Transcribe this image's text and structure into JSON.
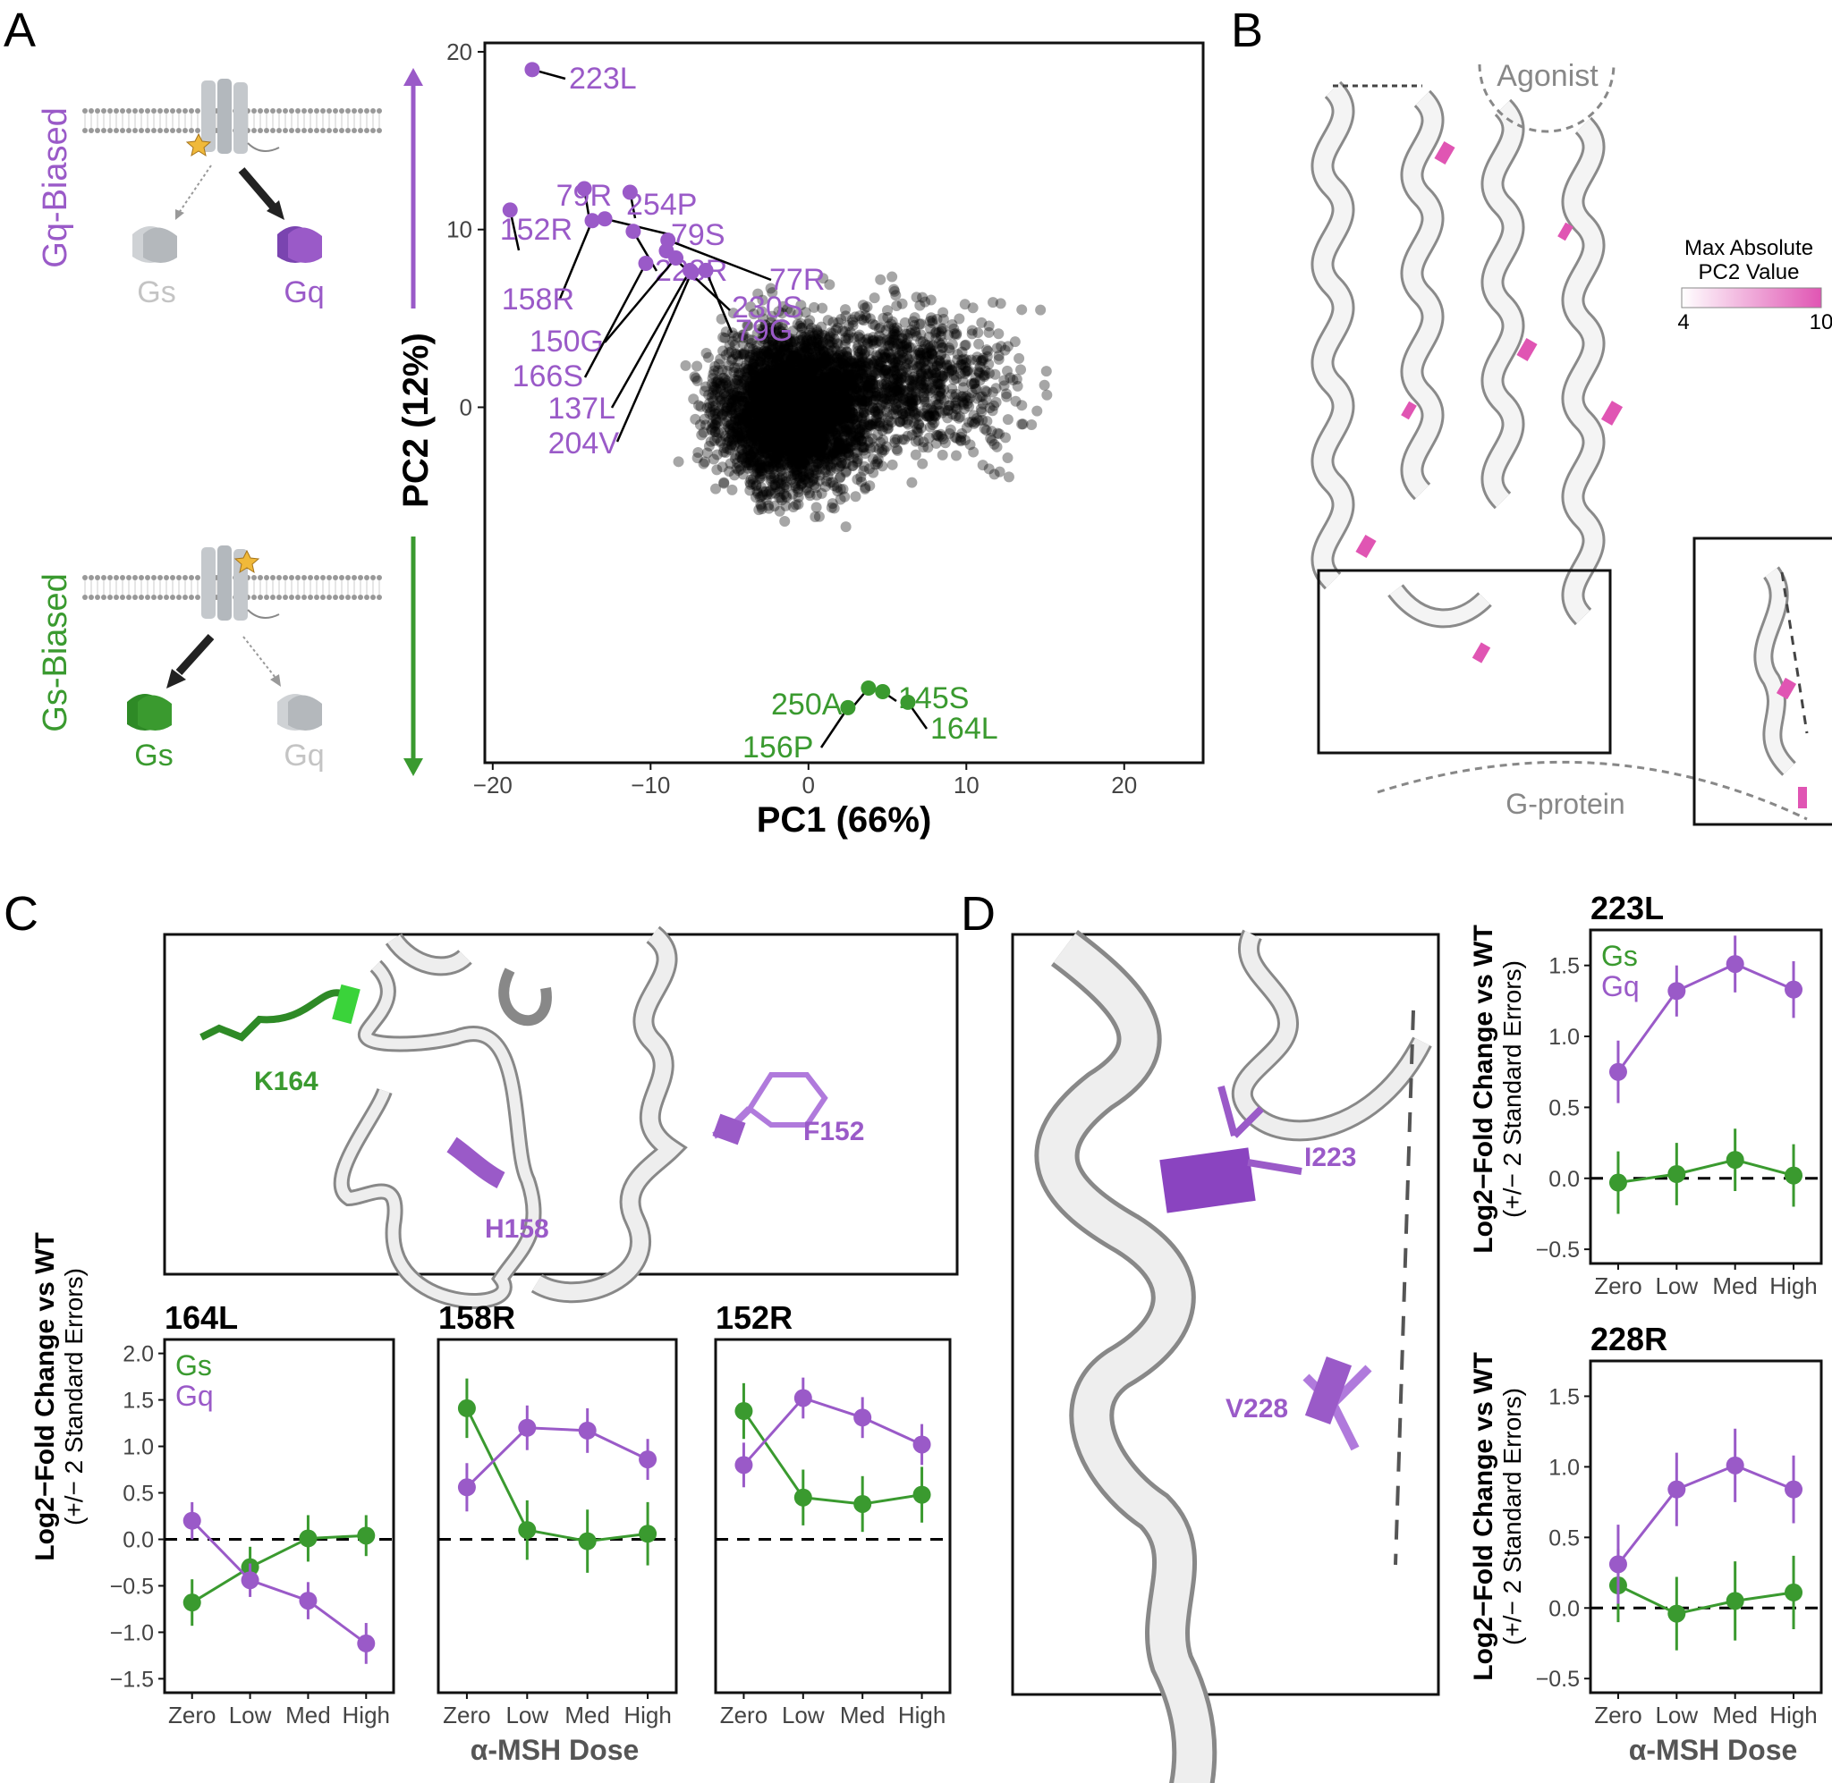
{
  "colors": {
    "gs": "#3a9a2f",
    "gq": "#9a5ac8",
    "gray": "#7f7f7f",
    "pink": "#e055b3",
    "black": "#000000"
  },
  "panels": {
    "a": "A",
    "b": "B",
    "c": "C",
    "d": "D"
  },
  "schematic": {
    "gq_biased": "Gq-Biased",
    "gs_biased": "Gs-Biased",
    "gs": "Gs",
    "gq": "Gq"
  },
  "structure": {
    "agonist": "Agonist",
    "gprotein": "G-protein",
    "colorbar_title_1": "Max Absolute",
    "colorbar_title_2": "PC2 Value",
    "colorbar_min": "4",
    "colorbar_max": "10"
  },
  "residues_c": {
    "k164": "K164",
    "h158": "H158",
    "f152": "F152"
  },
  "residues_d": {
    "i223": "I223",
    "v228": "V228"
  },
  "legend": {
    "gs": "Gs",
    "gq": "Gq"
  },
  "common": {
    "ylabel_1": "Log2−Fold Change vs WT",
    "ylabel_2": "(+/− 2 Standard Errors)",
    "xlabel": "α-MSH Dose"
  },
  "chart_data": [
    {
      "type": "scatter",
      "xlabel": "PC1 (66%)",
      "ylabel": "PC2 (12%)",
      "xlim": [
        -20.5,
        25
      ],
      "ylim": [
        -20,
        20.5
      ],
      "xticks": [
        -20,
        -10,
        0,
        10,
        20
      ],
      "yticks": [
        0,
        10,
        20
      ],
      "highlighted": [
        {
          "label": "223L",
          "x": -17.5,
          "y": 19.0,
          "group": "Gq"
        },
        {
          "label": "79R",
          "x": -14.2,
          "y": 12.3,
          "group": "Gq"
        },
        {
          "label": "254P",
          "x": -11.3,
          "y": 12.1,
          "group": "Gq"
        },
        {
          "label": "152R",
          "x": -18.9,
          "y": 11.1,
          "group": "Gq"
        },
        {
          "label": "79S",
          "x": -12.9,
          "y": 10.6,
          "group": "Gq"
        },
        {
          "label": "158R",
          "x": -13.7,
          "y": 10.5,
          "group": "Gq"
        },
        {
          "label": "228R",
          "x": -11.1,
          "y": 9.9,
          "group": "Gq"
        },
        {
          "label": "77R",
          "x": -8.9,
          "y": 9.4,
          "group": "Gq"
        },
        {
          "label": "230S",
          "x": -9.0,
          "y": 8.8,
          "group": "Gq"
        },
        {
          "label": "150G",
          "x": -8.4,
          "y": 8.4,
          "group": "Gq"
        },
        {
          "label": "79G",
          "x": -6.5,
          "y": 7.7,
          "group": "Gq"
        },
        {
          "label": "166S",
          "x": -10.3,
          "y": 8.1,
          "group": "Gq"
        },
        {
          "label": "137L",
          "x": -7.5,
          "y": 7.7,
          "group": "Gq"
        },
        {
          "label": "204V",
          "x": -7.4,
          "y": 7.6,
          "group": "Gq"
        },
        {
          "label": "250A",
          "x": 3.8,
          "y": -15.8,
          "group": "Gs"
        },
        {
          "label": "145S",
          "x": 4.7,
          "y": -16.0,
          "group": "Gs"
        },
        {
          "label": "164L",
          "x": 6.3,
          "y": -16.6,
          "group": "Gs"
        },
        {
          "label": "156P",
          "x": 2.5,
          "y": -16.9,
          "group": "Gs"
        }
      ]
    },
    {
      "type": "line",
      "title": "164L",
      "categories": [
        "Zero",
        "Low",
        "Med",
        "High"
      ],
      "ylim": [
        -1.65,
        2.15
      ],
      "yticks": [
        -1.5,
        -1.0,
        -0.5,
        0.0,
        0.5,
        1.0,
        1.5,
        2.0
      ],
      "ytick_labels": [
        "−1.5",
        "−1.0",
        "−0.5",
        "0.0",
        "0.5",
        "1.0",
        "1.5",
        "2.0"
      ],
      "series": [
        {
          "name": "Gs",
          "values": [
            -0.68,
            -0.3,
            0.01,
            0.04
          ],
          "errors": [
            0.25,
            0.22,
            0.25,
            0.22
          ]
        },
        {
          "name": "Gq",
          "values": [
            0.2,
            -0.44,
            -0.66,
            -1.12
          ],
          "errors": [
            0.2,
            0.18,
            0.2,
            0.22
          ]
        }
      ]
    },
    {
      "type": "line",
      "title": "158R",
      "categories": [
        "Zero",
        "Low",
        "Med",
        "High"
      ],
      "ylim": [
        -1.65,
        2.15
      ],
      "series": [
        {
          "name": "Gs",
          "values": [
            1.41,
            0.1,
            -0.02,
            0.06
          ],
          "errors": [
            0.32,
            0.32,
            0.34,
            0.34
          ]
        },
        {
          "name": "Gq",
          "values": [
            0.56,
            1.2,
            1.17,
            0.86
          ],
          "errors": [
            0.26,
            0.24,
            0.24,
            0.22
          ]
        }
      ]
    },
    {
      "type": "line",
      "title": "152R",
      "categories": [
        "Zero",
        "Low",
        "Med",
        "High"
      ],
      "ylim": [
        -1.65,
        2.15
      ],
      "series": [
        {
          "name": "Gs",
          "values": [
            1.38,
            0.45,
            0.38,
            0.48
          ],
          "errors": [
            0.3,
            0.3,
            0.3,
            0.3
          ]
        },
        {
          "name": "Gq",
          "values": [
            0.8,
            1.52,
            1.31,
            1.02
          ],
          "errors": [
            0.24,
            0.22,
            0.22,
            0.22
          ]
        }
      ]
    },
    {
      "type": "line",
      "title": "223L",
      "categories": [
        "Zero",
        "Low",
        "Med",
        "High"
      ],
      "ylim": [
        -0.6,
        1.75
      ],
      "yticks": [
        -0.5,
        0.0,
        0.5,
        1.0,
        1.5
      ],
      "ytick_labels": [
        "−0.5",
        "0.0",
        "0.5",
        "1.0",
        "1.5"
      ],
      "series": [
        {
          "name": "Gs",
          "values": [
            -0.03,
            0.03,
            0.13,
            0.02
          ],
          "errors": [
            0.22,
            0.22,
            0.22,
            0.22
          ]
        },
        {
          "name": "Gq",
          "values": [
            0.75,
            1.32,
            1.51,
            1.33
          ],
          "errors": [
            0.22,
            0.18,
            0.2,
            0.2
          ]
        }
      ]
    },
    {
      "type": "line",
      "title": "228R",
      "categories": [
        "Zero",
        "Low",
        "Med",
        "High"
      ],
      "ylim": [
        -0.6,
        1.75
      ],
      "yticks": [
        -0.5,
        0.0,
        0.5,
        1.0,
        1.5
      ],
      "ytick_labels": [
        "−0.5",
        "0.0",
        "0.5",
        "1.0",
        "1.5"
      ],
      "series": [
        {
          "name": "Gs",
          "values": [
            0.16,
            -0.04,
            0.05,
            0.11
          ],
          "errors": [
            0.26,
            0.26,
            0.28,
            0.26
          ]
        },
        {
          "name": "Gq",
          "values": [
            0.31,
            0.84,
            1.01,
            0.84
          ],
          "errors": [
            0.28,
            0.26,
            0.26,
            0.24
          ]
        }
      ]
    }
  ]
}
